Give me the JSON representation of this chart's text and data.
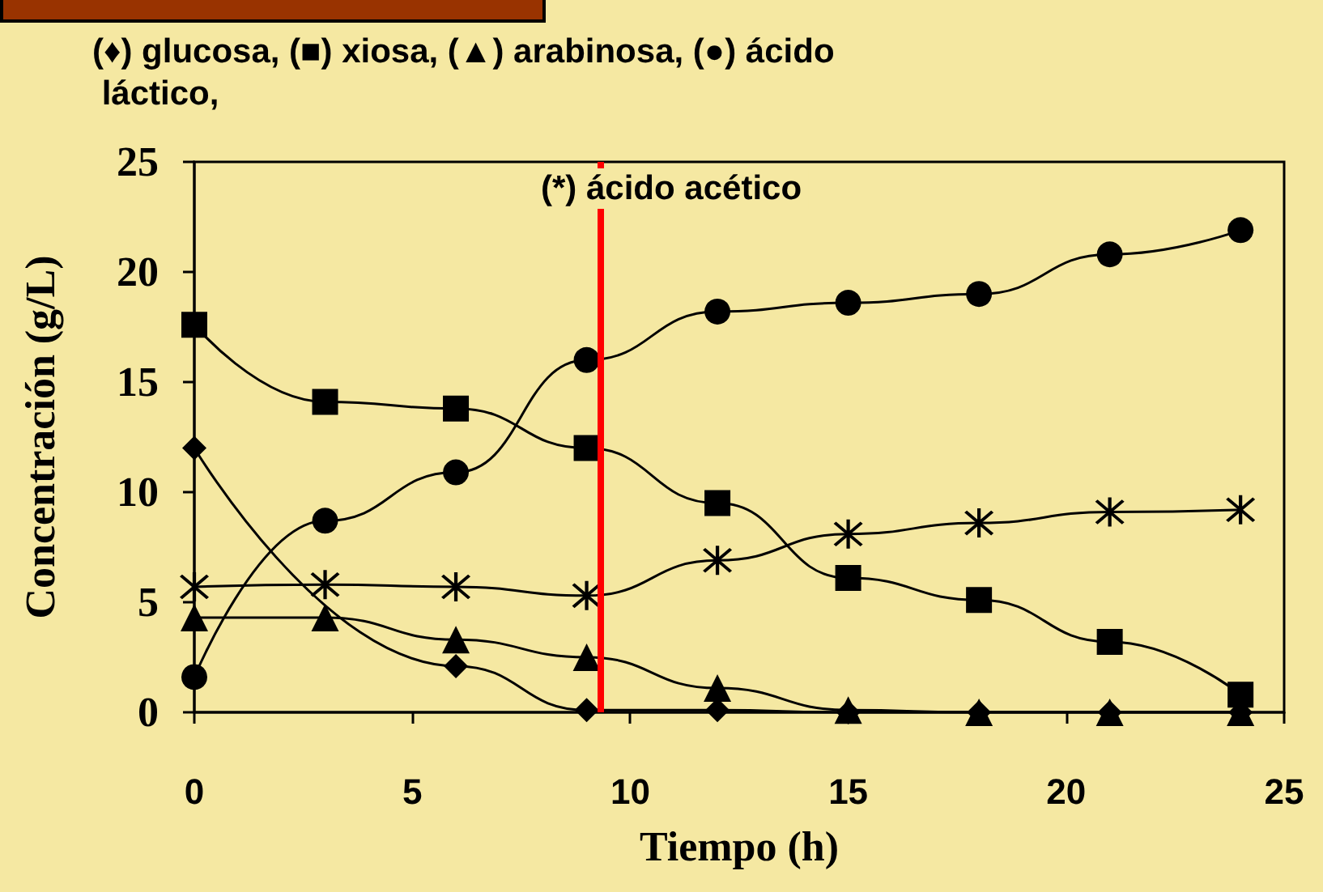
{
  "chart_data": {
    "type": "line",
    "title": "(♦) glucosa, (■) xiosa, (▲) arabinosa, (●) ácido láctico,",
    "annotations": [
      "(*) ácido acético"
    ],
    "xlabel": "Tiempo (h)",
    "ylabel": "Concentración (g/L)",
    "x": [
      0,
      3,
      6,
      9,
      12,
      15,
      18,
      21,
      24
    ],
    "series": [
      {
        "color": "#000000",
        "marker": "diamond",
        "values": [
          12.0,
          2.1,
          0.1,
          0.1,
          0,
          0,
          0,
          0
        ],
        "x": [
          0,
          6,
          9,
          12,
          15,
          18,
          21,
          24
        ]
      },
      {
        "color": "#000000",
        "marker": "square",
        "values": [
          17.6,
          14.1,
          13.8,
          12.0,
          9.5,
          6.1,
          5.1,
          3.2,
          0.8
        ]
      },
      {
        "color": "#000000",
        "marker": "triangle",
        "values": [
          4.3,
          4.3,
          3.3,
          2.5,
          1.1,
          0.1,
          0,
          0,
          0
        ]
      },
      {
        "color": "#000000",
        "marker": "circle",
        "values": [
          1.6,
          8.7,
          10.9,
          16.0,
          18.2,
          18.6,
          19.0,
          20.8,
          21.9
        ]
      },
      {
        "color": "#000000",
        "marker": "cross",
        "values": [
          5.7,
          5.8,
          5.7,
          5.3,
          6.9,
          8.1,
          8.6,
          9.1,
          9.2
        ]
      }
    ],
    "xlim": [
      0,
      25
    ],
    "xticks": [
      0,
      5,
      10,
      15,
      20,
      25
    ],
    "ylim": [
      0,
      25
    ],
    "yticks": [
      0,
      5,
      10,
      15,
      20,
      25
    ],
    "ref_lines": [
      {
        "axis": "x",
        "value": 9.3,
        "color": "#ff0000"
      }
    ],
    "grid": false
  }
}
